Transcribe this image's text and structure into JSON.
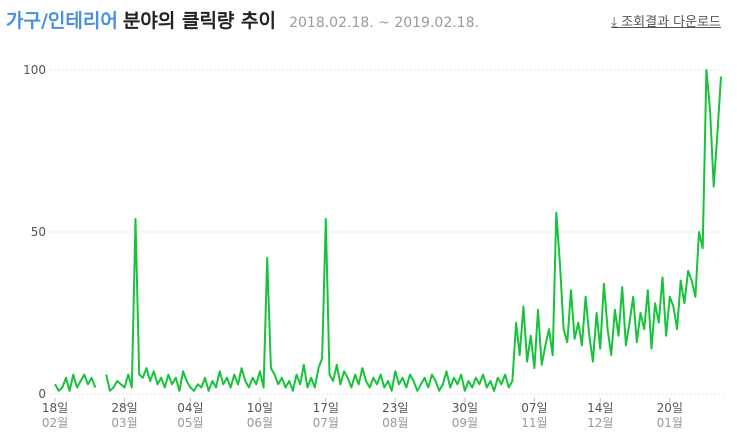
{
  "chart_data": {
    "type": "line",
    "title_category": "가구/인테리어",
    "title": "분야의 클릭량 추이",
    "subtitle": "2018.02.18. ~ 2019.02.18.",
    "download_label": "조회결과 다운로드",
    "ylim": [
      0,
      100
    ],
    "yticks": [
      0,
      50,
      100
    ],
    "grid": true,
    "categories": [
      [
        "18일",
        "02월"
      ],
      null,
      null,
      null,
      null,
      null,
      null,
      null,
      null,
      null,
      null,
      null,
      null,
      null,
      null,
      null,
      null,
      null,
      null,
      [
        "28일",
        "03월"
      ],
      null,
      null,
      null,
      null,
      null,
      null,
      null,
      null,
      null,
      null,
      null,
      null,
      null,
      null,
      null,
      null,
      null,
      [
        "04일",
        "05월"
      ],
      null,
      null,
      null,
      null,
      null,
      null,
      null,
      null,
      null,
      null,
      null,
      null,
      null,
      null,
      null,
      null,
      null,
      null,
      [
        "10일",
        "06월"
      ],
      null,
      null,
      null,
      null,
      null,
      null,
      null,
      null,
      null,
      null,
      null,
      null,
      null,
      null,
      null,
      null,
      null,
      [
        "17일",
        "07월"
      ],
      null,
      null,
      null,
      null,
      null,
      null,
      null,
      null,
      null,
      null,
      null,
      null,
      null,
      null,
      null,
      null,
      null,
      null,
      [
        "23일",
        "08월"
      ],
      null,
      null,
      null,
      null,
      null,
      null,
      null,
      null,
      null,
      null,
      null,
      null,
      null,
      null,
      null,
      null,
      null,
      null,
      [
        "30일",
        "09월"
      ],
      null,
      null,
      null,
      null,
      null,
      null,
      null,
      null,
      null,
      null,
      null,
      null,
      null,
      null,
      null,
      null,
      null,
      null,
      [
        "07일",
        "11월"
      ],
      null,
      null,
      null,
      null,
      null,
      null,
      null,
      null,
      null,
      null,
      null,
      null,
      null,
      null,
      null,
      null,
      null,
      [
        "14일",
        "12월"
      ],
      null,
      null,
      null,
      null,
      null,
      null,
      null,
      null,
      null,
      null,
      null,
      null,
      null,
      null,
      null,
      null,
      null,
      null,
      [
        "20일",
        "01월"
      ],
      null,
      null,
      null,
      null,
      null,
      null,
      null,
      null,
      null,
      null,
      null,
      null,
      null,
      null
    ],
    "series": [
      {
        "name": "가구/인테리어",
        "color": "#17c33a",
        "values": [
          3,
          1,
          2,
          5,
          1,
          6,
          2,
          4,
          6,
          3,
          5,
          2,
          null,
          null,
          6,
          1,
          2,
          4,
          3,
          2,
          6,
          2,
          54,
          6,
          5,
          8,
          4,
          7,
          3,
          5,
          2,
          6,
          3,
          5,
          1,
          7,
          4,
          2,
          1,
          3,
          2,
          5,
          1,
          4,
          2,
          7,
          3,
          5,
          2,
          6,
          3,
          8,
          4,
          2,
          5,
          3,
          7,
          2,
          42,
          8,
          6,
          3,
          5,
          2,
          4,
          1,
          6,
          3,
          9,
          2,
          5,
          2,
          8,
          11,
          54,
          6,
          4,
          9,
          3,
          7,
          5,
          2,
          6,
          3,
          8,
          4,
          2,
          5,
          3,
          6,
          2,
          4,
          1,
          7,
          3,
          5,
          2,
          6,
          4,
          1,
          3,
          5,
          2,
          6,
          4,
          1,
          3,
          7,
          2,
          5,
          3,
          6,
          1,
          4,
          2,
          5,
          3,
          6,
          2,
          4,
          1,
          5,
          3,
          6,
          2,
          4,
          22,
          12,
          27,
          10,
          18,
          8,
          26,
          9,
          15,
          20,
          12,
          56,
          40,
          20,
          16,
          32,
          17,
          22,
          15,
          30,
          18,
          10,
          25,
          14,
          34,
          20,
          12,
          26,
          18,
          33,
          15,
          22,
          30,
          16,
          25,
          20,
          32,
          14,
          28,
          22,
          36,
          18,
          30,
          27,
          20,
          35,
          28,
          38,
          35,
          30,
          50,
          45,
          100,
          88,
          64,
          80,
          98
        ]
      }
    ]
  }
}
